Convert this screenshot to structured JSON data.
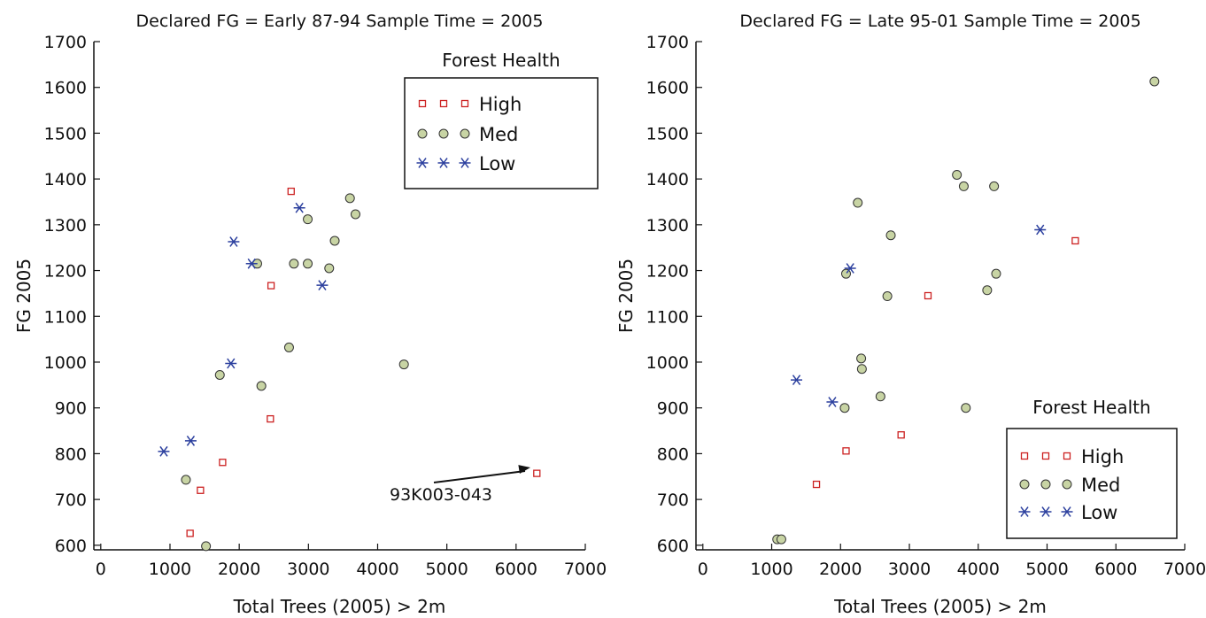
{
  "chart_data": [
    {
      "type": "scatter",
      "title": "Declared FG = Early 87-94 Sample Time = 2005",
      "xlabel": "Total Trees (2005) > 2m",
      "ylabel": "FG 2005",
      "xlim": [
        -100,
        7000
      ],
      "ylim": [
        590,
        1700
      ],
      "xticks": [
        0,
        1000,
        2000,
        3000,
        4000,
        5000,
        6000,
        7000
      ],
      "yticks": [
        600,
        700,
        800,
        900,
        1000,
        1100,
        1200,
        1300,
        1400,
        1500,
        1600,
        1700
      ],
      "xtick_labels": [
        "0",
        "1000",
        "2000",
        "3000",
        "4000",
        "5000",
        "6000",
        "7000"
      ],
      "ytick_labels": [
        "600",
        "700",
        "800",
        "900",
        "1000",
        "1100",
        "1200",
        "1300",
        "1400",
        "1500",
        "1600",
        "1700"
      ],
      "legend": {
        "title": "Forest Health",
        "placement": "top-right"
      },
      "series": [
        {
          "name": "High",
          "marker": "square",
          "color": "#cc2222",
          "points": [
            [
              2750,
              1373
            ],
            [
              2460,
              1167
            ],
            [
              2450,
              876
            ],
            [
              1760,
              781
            ],
            [
              1440,
              720
            ],
            [
              1290,
              626
            ],
            [
              6300,
              757
            ]
          ]
        },
        {
          "name": "Med",
          "marker": "circle",
          "color": "#c8d4a4",
          "points": [
            [
              3600,
              1358
            ],
            [
              3680,
              1323
            ],
            [
              2990,
              1312
            ],
            [
              3380,
              1265
            ],
            [
              2260,
              1215
            ],
            [
              2790,
              1215
            ],
            [
              2990,
              1215
            ],
            [
              3300,
              1205
            ],
            [
              2720,
              1032
            ],
            [
              1720,
              972
            ],
            [
              2320,
              948
            ],
            [
              4380,
              995
            ],
            [
              1230,
              743
            ],
            [
              1520,
              598
            ]
          ]
        },
        {
          "name": "Low",
          "marker": "asterisk",
          "color": "#2b3f9e",
          "points": [
            [
              2870,
              1337
            ],
            [
              1920,
              1263
            ],
            [
              2180,
              1215
            ],
            [
              3200,
              1168
            ],
            [
              1880,
              997
            ],
            [
              1300,
              828
            ],
            [
              910,
              805
            ]
          ]
        }
      ],
      "annotations": [
        {
          "text": "93K003-043",
          "target": [
            6300,
            757
          ]
        }
      ]
    },
    {
      "type": "scatter",
      "title": "Declared FG = Late 95-01 Sample Time = 2005",
      "xlabel": "Total Trees (2005) > 2m",
      "ylabel": "FG 2005",
      "xlim": [
        -100,
        7000
      ],
      "ylim": [
        590,
        1700
      ],
      "xticks": [
        0,
        1000,
        2000,
        3000,
        4000,
        5000,
        6000,
        7000
      ],
      "yticks": [
        600,
        700,
        800,
        900,
        1000,
        1100,
        1200,
        1300,
        1400,
        1500,
        1600,
        1700
      ],
      "xtick_labels": [
        "0",
        "1000",
        "2000",
        "3000",
        "4000",
        "5000",
        "6000",
        "7000"
      ],
      "ytick_labels": [
        "600",
        "700",
        "800",
        "900",
        "1000",
        "1100",
        "1200",
        "1300",
        "1400",
        "1500",
        "1600",
        "1700"
      ],
      "legend": {
        "title": "Forest Health",
        "placement": "bottom-right"
      },
      "series": [
        {
          "name": "High",
          "marker": "square",
          "color": "#cc2222",
          "points": [
            [
              5410,
              1265
            ],
            [
              3270,
              1145
            ],
            [
              2880,
              841
            ],
            [
              2080,
              806
            ],
            [
              1650,
              733
            ]
          ]
        },
        {
          "name": "Med",
          "marker": "circle",
          "color": "#c8d4a4",
          "points": [
            [
              6560,
              1613
            ],
            [
              3690,
              1409
            ],
            [
              3790,
              1384
            ],
            [
              4230,
              1384
            ],
            [
              2250,
              1348
            ],
            [
              2730,
              1277
            ],
            [
              2080,
              1193
            ],
            [
              4260,
              1193
            ],
            [
              4130,
              1157
            ],
            [
              2680,
              1144
            ],
            [
              2300,
              1008
            ],
            [
              2310,
              985
            ],
            [
              2580,
              925
            ],
            [
              2060,
              900
            ],
            [
              3820,
              900
            ],
            [
              1080,
              613
            ],
            [
              1140,
              613
            ]
          ]
        },
        {
          "name": "Low",
          "marker": "asterisk",
          "color": "#2b3f9e",
          "points": [
            [
              4900,
              1289
            ],
            [
              2140,
              1205
            ],
            [
              1360,
              961
            ],
            [
              1880,
              913
            ]
          ]
        }
      ],
      "annotations": []
    }
  ]
}
